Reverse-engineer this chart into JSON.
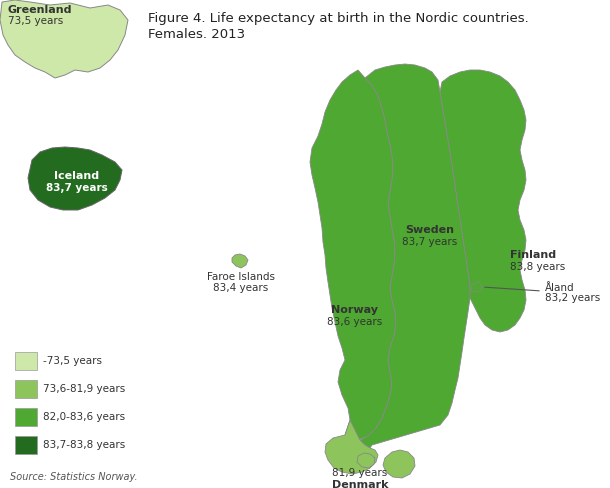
{
  "title_line1": "Figure 4. Life expectancy at birth in the Nordic countries.",
  "title_line2": "Females. 2013",
  "source": "Source: Statistics Norway.",
  "background_color": "#ffffff",
  "colors": {
    "greenland": "#cde8a8",
    "denmark": "#8dc55c",
    "faroe": "#8dc55c",
    "norway": "#4ea832",
    "sweden": "#4ea832",
    "finland": "#4ea832",
    "iceland": "#236b1f",
    "aland": "#4ea832",
    "border": "#aaaaaa",
    "legend_1": "#cde8a8",
    "legend_2": "#8dc55c",
    "legend_3": "#4ea832",
    "legend_4": "#236b1f"
  },
  "legend_labels": [
    "-73,5 years",
    "73,6-81,9 years",
    "82,0-83,6 years",
    "83,7-83,8 years"
  ],
  "label_color": "#333333",
  "iceland_label_color": "#ffffff"
}
